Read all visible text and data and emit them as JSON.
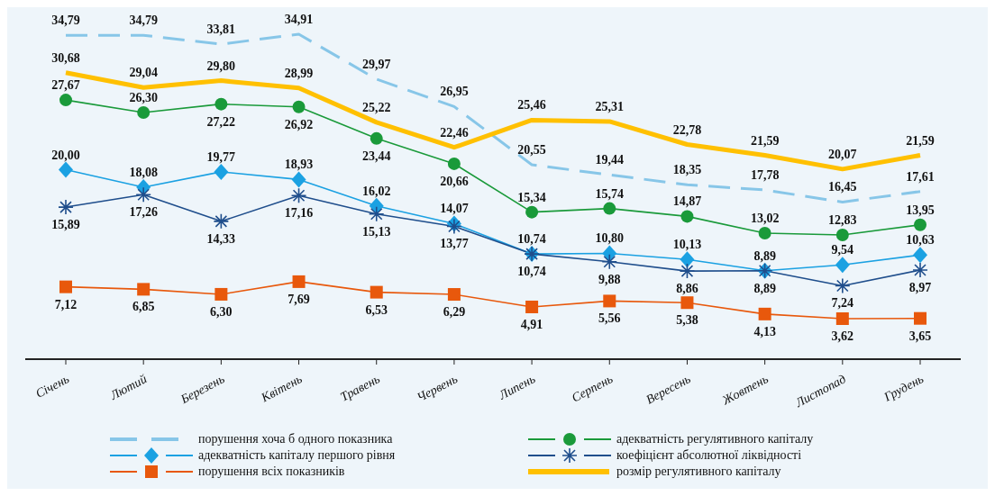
{
  "chart_data": {
    "type": "line",
    "categories": [
      "Січень",
      "Лютий",
      "Березень",
      "Квітень",
      "Травень",
      "Червень",
      "Липень",
      "Серпень",
      "Вересень",
      "Жовтень",
      "Листопад",
      "Грудень"
    ],
    "legend": "bottom",
    "grid": false,
    "series": [
      {
        "name": "порушення хоча б одного показника",
        "color": "#87c6e8",
        "line_style": "dashed",
        "marker": "none",
        "values": [
          34.79,
          34.79,
          33.81,
          34.91,
          29.97,
          26.95,
          20.55,
          19.44,
          18.35,
          17.78,
          16.45,
          17.61
        ],
        "value_labels": [
          "34,79",
          "34,79",
          "33,81",
          "34,91",
          "29,97",
          "26,95",
          "20,55",
          "19,44",
          "18,35",
          "17,78",
          "16,45",
          "17,61"
        ]
      },
      {
        "name": "адекватність регулятивного капіталу",
        "color": "#1a9a3a",
        "marker": "circle",
        "values": [
          27.67,
          26.3,
          27.22,
          26.92,
          23.44,
          20.66,
          15.34,
          15.74,
          14.87,
          13.02,
          12.83,
          13.95
        ],
        "value_labels": [
          "27,67",
          "26,30",
          "27,22",
          "26,92",
          "23,44",
          "20,66",
          "15,34",
          "15,74",
          "14,87",
          "13,02",
          "12,83",
          "13,95"
        ]
      },
      {
        "name": "адекватність капіталу першого рівня",
        "color": "#1ba1e2",
        "marker": "diamond",
        "values": [
          20.0,
          18.08,
          19.77,
          18.93,
          16.02,
          14.07,
          10.74,
          10.8,
          10.13,
          8.89,
          9.54,
          10.63
        ],
        "value_labels": [
          "20,00",
          "18,08",
          "19,77",
          "18,93",
          "16,02",
          "14,07",
          "10,74",
          "10,80",
          "10,13",
          "8,89",
          "9,54",
          "10,63"
        ]
      },
      {
        "name": "коефіцієнт абсолютної ліквідності",
        "color": "#1f4e8c",
        "marker": "cross",
        "values": [
          15.89,
          17.26,
          14.33,
          17.16,
          15.13,
          13.77,
          10.74,
          9.88,
          8.86,
          8.89,
          7.24,
          8.97
        ],
        "value_labels": [
          "15,89",
          "17,26",
          "14,33",
          "17,16",
          "15,13",
          "13,77",
          "10,74",
          "9,88",
          "8,86",
          "8,89",
          "7,24",
          "8,97"
        ]
      },
      {
        "name": "порушення всіх показників",
        "color": "#e8580c",
        "marker": "square",
        "values": [
          7.12,
          6.85,
          6.3,
          7.69,
          6.53,
          6.29,
          4.91,
          5.56,
          5.38,
          4.13,
          3.62,
          3.65
        ],
        "value_labels": [
          "7,12",
          "6,85",
          "6,30",
          "7,69",
          "6,53",
          "6,29",
          "4,91",
          "5,56",
          "5,38",
          "4,13",
          "3,62",
          "3,65"
        ]
      },
      {
        "name": "розмір регулятивного капіталу",
        "color": "#ffc000",
        "marker": "none",
        "values": [
          30.68,
          29.04,
          29.8,
          28.99,
          25.22,
          22.46,
          25.46,
          25.31,
          22.78,
          21.59,
          20.07,
          21.59
        ],
        "value_labels": [
          "30,68",
          "29,04",
          "29,80",
          "28,99",
          "25,22",
          "22,46",
          "25,46",
          "25,31",
          "22,78",
          "21,59",
          "20,07",
          "21,59"
        ]
      }
    ]
  }
}
